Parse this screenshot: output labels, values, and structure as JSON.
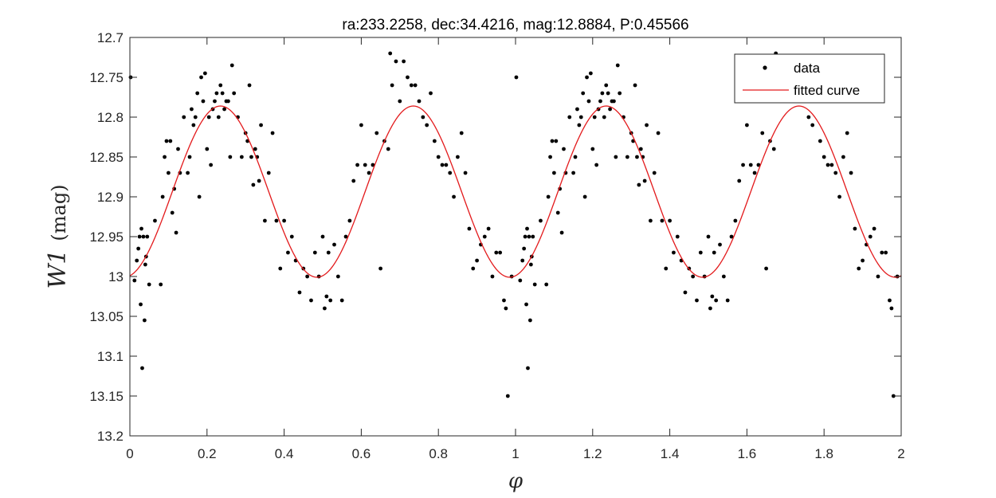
{
  "chart_data": {
    "type": "scatter",
    "title": "ra:233.2258, dec:34.4216, mag:12.8884, P:0.45566",
    "xlabel": "φ",
    "ylabel": "W1 (mag)",
    "ylabel_main": "W1",
    "ylabel_unit": "(mag)",
    "xlim": [
      0,
      2
    ],
    "ylim": [
      12.7,
      13.2
    ],
    "y_reversed": true,
    "x_ticks": [
      "0",
      "0.2",
      "0.4",
      "0.6",
      "0.8",
      "1",
      "1.2",
      "1.4",
      "1.6",
      "1.8",
      "2"
    ],
    "y_ticks": [
      "12.7",
      "12.75",
      "12.8",
      "12.85",
      "12.9",
      "12.95",
      "13",
      "13.05",
      "13.1",
      "13.15",
      "13.2"
    ],
    "legend": {
      "position": "top-right",
      "entries": [
        "data",
        "fitted curve"
      ]
    },
    "colors": {
      "data": "#000000",
      "curve": "#e31a1c"
    },
    "series": [
      {
        "name": "data",
        "marker": "dot",
        "x": [
          0.002,
          0.012,
          0.018,
          0.022,
          0.025,
          0.028,
          0.03,
          0.032,
          0.035,
          0.038,
          0.04,
          0.042,
          0.045,
          0.05,
          0.065,
          0.08,
          0.085,
          0.09,
          0.095,
          0.1,
          0.105,
          0.11,
          0.115,
          0.12,
          0.125,
          0.13,
          0.14,
          0.15,
          0.155,
          0.16,
          0.165,
          0.17,
          0.175,
          0.18,
          0.185,
          0.19,
          0.195,
          0.2,
          0.205,
          0.21,
          0.215,
          0.22,
          0.225,
          0.23,
          0.235,
          0.24,
          0.245,
          0.25,
          0.255,
          0.26,
          0.265,
          0.27,
          0.28,
          0.29,
          0.3,
          0.305,
          0.31,
          0.315,
          0.32,
          0.325,
          0.33,
          0.335,
          0.34,
          0.35,
          0.36,
          0.37,
          0.38,
          0.39,
          0.4,
          0.41,
          0.42,
          0.43,
          0.44,
          0.45,
          0.46,
          0.47,
          0.48,
          0.49,
          0.5,
          0.505,
          0.51,
          0.515,
          0.52,
          0.53,
          0.54,
          0.55,
          0.56,
          0.57,
          0.58,
          0.59,
          0.6,
          0.61,
          0.62,
          0.63,
          0.64,
          0.65,
          0.66,
          0.67,
          0.675,
          0.68,
          0.69,
          0.7,
          0.71,
          0.72,
          0.73,
          0.74,
          0.75,
          0.76,
          0.77,
          0.78,
          0.79,
          0.8,
          0.81,
          0.82,
          0.83,
          0.84,
          0.85,
          0.86,
          0.87,
          0.88,
          0.89,
          0.9,
          0.91,
          0.92,
          0.93,
          0.94,
          0.95,
          0.96,
          0.97,
          0.975,
          0.98,
          0.99,
          1.002,
          1.012,
          1.018,
          1.022,
          1.025,
          1.028,
          1.03,
          1.032,
          1.035,
          1.038,
          1.04,
          1.042,
          1.045,
          1.05,
          1.065,
          1.08,
          1.085,
          1.09,
          1.095,
          1.1,
          1.105,
          1.11,
          1.115,
          1.12,
          1.125,
          1.13,
          1.14,
          1.15,
          1.155,
          1.16,
          1.165,
          1.17,
          1.175,
          1.18,
          1.185,
          1.19,
          1.195,
          1.2,
          1.205,
          1.21,
          1.215,
          1.22,
          1.225,
          1.23,
          1.235,
          1.24,
          1.245,
          1.25,
          1.255,
          1.26,
          1.265,
          1.27,
          1.28,
          1.29,
          1.3,
          1.305,
          1.31,
          1.315,
          1.32,
          1.325,
          1.33,
          1.335,
          1.34,
          1.35,
          1.36,
          1.37,
          1.38,
          1.39,
          1.4,
          1.41,
          1.42,
          1.43,
          1.44,
          1.45,
          1.46,
          1.47,
          1.48,
          1.49,
          1.5,
          1.505,
          1.51,
          1.515,
          1.52,
          1.53,
          1.54,
          1.55,
          1.56,
          1.57,
          1.58,
          1.59,
          1.6,
          1.61,
          1.62,
          1.63,
          1.64,
          1.65,
          1.66,
          1.67,
          1.675,
          1.68,
          1.69,
          1.7,
          1.71,
          1.72,
          1.73,
          1.74,
          1.75,
          1.76,
          1.77,
          1.78,
          1.79,
          1.8,
          1.81,
          1.82,
          1.83,
          1.84,
          1.85,
          1.86,
          1.87,
          1.88,
          1.89,
          1.9,
          1.91,
          1.92,
          1.93,
          1.94,
          1.95,
          1.96,
          1.97,
          1.975,
          1.98,
          1.99
        ],
        "y": [
          12.75,
          13.005,
          12.98,
          12.965,
          12.95,
          13.035,
          12.94,
          13.115,
          12.95,
          13.055,
          12.985,
          12.975,
          12.95,
          13.01,
          12.93,
          13.01,
          12.9,
          12.85,
          12.83,
          12.87,
          12.83,
          12.92,
          12.89,
          12.945,
          12.84,
          12.87,
          12.8,
          12.87,
          12.85,
          12.79,
          12.81,
          12.8,
          12.77,
          12.9,
          12.75,
          12.78,
          12.745,
          12.84,
          12.8,
          12.86,
          12.79,
          12.78,
          12.77,
          12.8,
          12.76,
          12.77,
          12.79,
          12.78,
          12.78,
          12.85,
          12.735,
          12.77,
          12.8,
          12.85,
          12.82,
          12.83,
          12.76,
          12.85,
          12.885,
          12.84,
          12.85,
          12.88,
          12.81,
          12.93,
          12.87,
          12.82,
          12.93,
          12.99,
          12.93,
          12.97,
          12.95,
          12.98,
          13.02,
          12.99,
          13.0,
          13.03,
          12.97,
          13.0,
          12.95,
          13.04,
          13.025,
          12.97,
          13.03,
          12.96,
          13.0,
          13.03,
          12.95,
          12.93,
          12.88,
          12.86,
          12.81,
          12.86,
          12.87,
          12.86,
          12.82,
          12.99,
          12.83,
          12.84,
          12.72,
          12.76,
          12.73,
          12.78,
          12.73,
          12.75,
          12.76,
          12.76,
          12.78,
          12.8,
          12.81,
          12.77,
          12.83,
          12.85,
          12.86,
          12.86,
          12.87,
          12.9,
          12.85,
          12.82,
          12.87,
          12.94,
          12.99,
          12.98,
          12.96,
          12.95,
          12.94,
          13.0,
          12.97,
          12.97,
          13.03,
          13.04,
          13.15,
          13.0,
          12.75,
          13.005,
          12.98,
          12.965,
          12.95,
          13.035,
          12.94,
          13.115,
          12.95,
          13.055,
          12.985,
          12.975,
          12.95,
          13.01,
          12.93,
          13.01,
          12.9,
          12.85,
          12.83,
          12.87,
          12.83,
          12.92,
          12.89,
          12.945,
          12.84,
          12.87,
          12.8,
          12.87,
          12.85,
          12.79,
          12.81,
          12.8,
          12.77,
          12.9,
          12.75,
          12.78,
          12.745,
          12.84,
          12.8,
          12.86,
          12.79,
          12.78,
          12.77,
          12.8,
          12.76,
          12.77,
          12.79,
          12.78,
          12.78,
          12.85,
          12.735,
          12.77,
          12.8,
          12.85,
          12.82,
          12.83,
          12.76,
          12.85,
          12.885,
          12.84,
          12.85,
          12.88,
          12.81,
          12.93,
          12.87,
          12.82,
          12.93,
          12.99,
          12.93,
          12.97,
          12.95,
          12.98,
          13.02,
          12.99,
          13.0,
          13.03,
          12.97,
          13.0,
          12.95,
          13.04,
          13.025,
          12.97,
          13.03,
          12.96,
          13.0,
          13.03,
          12.95,
          12.93,
          12.88,
          12.86,
          12.81,
          12.86,
          12.87,
          12.86,
          12.82,
          12.99,
          12.83,
          12.84,
          12.72,
          12.76,
          12.73,
          12.78,
          12.73,
          12.75,
          12.76,
          12.76,
          12.78,
          12.8,
          12.81,
          12.77,
          12.83,
          12.85,
          12.86,
          12.86,
          12.87,
          12.9,
          12.85,
          12.82,
          12.87,
          12.94,
          12.99,
          12.98,
          12.96,
          12.95,
          12.94,
          13.0,
          12.97,
          12.97,
          13.03,
          13.04,
          13.15,
          13.0
        ]
      },
      {
        "name": "fitted curve",
        "mean": 12.8935,
        "amplitude": 0.1075,
        "phase_of_max_brightness": 0.235,
        "harmonics_per_unit_phase": 2
      }
    ]
  }
}
